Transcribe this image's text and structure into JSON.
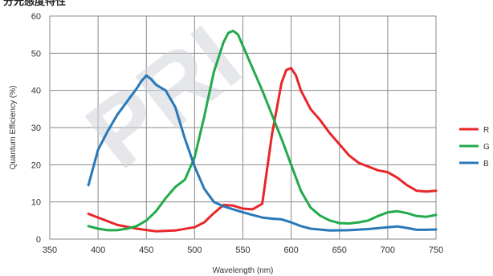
{
  "clipped_title": "分光感度特性",
  "watermark_text": "PRI",
  "chart_data": {
    "type": "line",
    "xlabel": "Wavelength (nm)",
    "ylabel": "Quantum Efficiency (%)",
    "xlim": [
      350,
      750
    ],
    "ylim": [
      0,
      60
    ],
    "xticks": [
      "350",
      "400",
      "450",
      "500",
      "550",
      "600",
      "650",
      "700",
      "750"
    ],
    "yticks": [
      "0",
      "10",
      "20",
      "30",
      "40",
      "50",
      "60"
    ],
    "grid": true,
    "legend_position": "right",
    "series": [
      {
        "name": "R",
        "color": "#e8262a",
        "x": [
          390,
          400,
          420,
          440,
          460,
          480,
          500,
          510,
          520,
          530,
          540,
          550,
          560,
          570,
          580,
          590,
          595,
          600,
          605,
          610,
          620,
          630,
          640,
          650,
          660,
          670,
          680,
          690,
          700,
          710,
          720,
          730,
          740,
          750
        ],
        "y": [
          6.8,
          5.8,
          3.8,
          2.8,
          2.1,
          2.3,
          3.2,
          4.5,
          7,
          9.2,
          9,
          8.2,
          8,
          9.5,
          28,
          42,
          45.5,
          46,
          44,
          40,
          35,
          32,
          28.5,
          25.5,
          22.5,
          20.5,
          19.5,
          18.5,
          18,
          16.5,
          14.5,
          13,
          12.8,
          13
        ]
      },
      {
        "name": "G",
        "color": "#22aa4c",
        "x": [
          390,
          400,
          410,
          420,
          430,
          440,
          450,
          460,
          470,
          480,
          490,
          500,
          510,
          520,
          530,
          535,
          540,
          545,
          550,
          560,
          570,
          580,
          590,
          600,
          610,
          620,
          630,
          640,
          650,
          660,
          670,
          680,
          690,
          700,
          710,
          720,
          730,
          740,
          750
        ],
        "y": [
          3.5,
          2.8,
          2.4,
          2.4,
          2.8,
          3.5,
          5,
          7.5,
          11,
          14,
          16,
          22,
          33,
          45,
          53,
          55.5,
          56,
          55,
          52,
          46,
          40,
          33.5,
          27,
          20,
          13,
          8.5,
          6.3,
          5,
          4.3,
          4.2,
          4.5,
          5,
          6.2,
          7.2,
          7.5,
          7,
          6.2,
          6,
          6.5
        ]
      },
      {
        "name": "B",
        "color": "#2878b8",
        "x": [
          390,
          400,
          410,
          420,
          430,
          440,
          445,
          450,
          455,
          460,
          470,
          480,
          490,
          500,
          510,
          520,
          530,
          540,
          550,
          560,
          570,
          580,
          590,
          600,
          610,
          620,
          640,
          660,
          680,
          700,
          710,
          720,
          730,
          740,
          750
        ],
        "y": [
          14.5,
          24,
          29,
          33.5,
          37,
          40.5,
          42.5,
          44,
          43,
          41.5,
          40,
          35.5,
          27,
          19.5,
          13.5,
          10,
          8.8,
          8,
          7.2,
          6.5,
          5.8,
          5.5,
          5.3,
          4.5,
          3.5,
          2.8,
          2.3,
          2.4,
          2.7,
          3.2,
          3.4,
          3,
          2.5,
          2.5,
          2.6
        ]
      }
    ]
  }
}
